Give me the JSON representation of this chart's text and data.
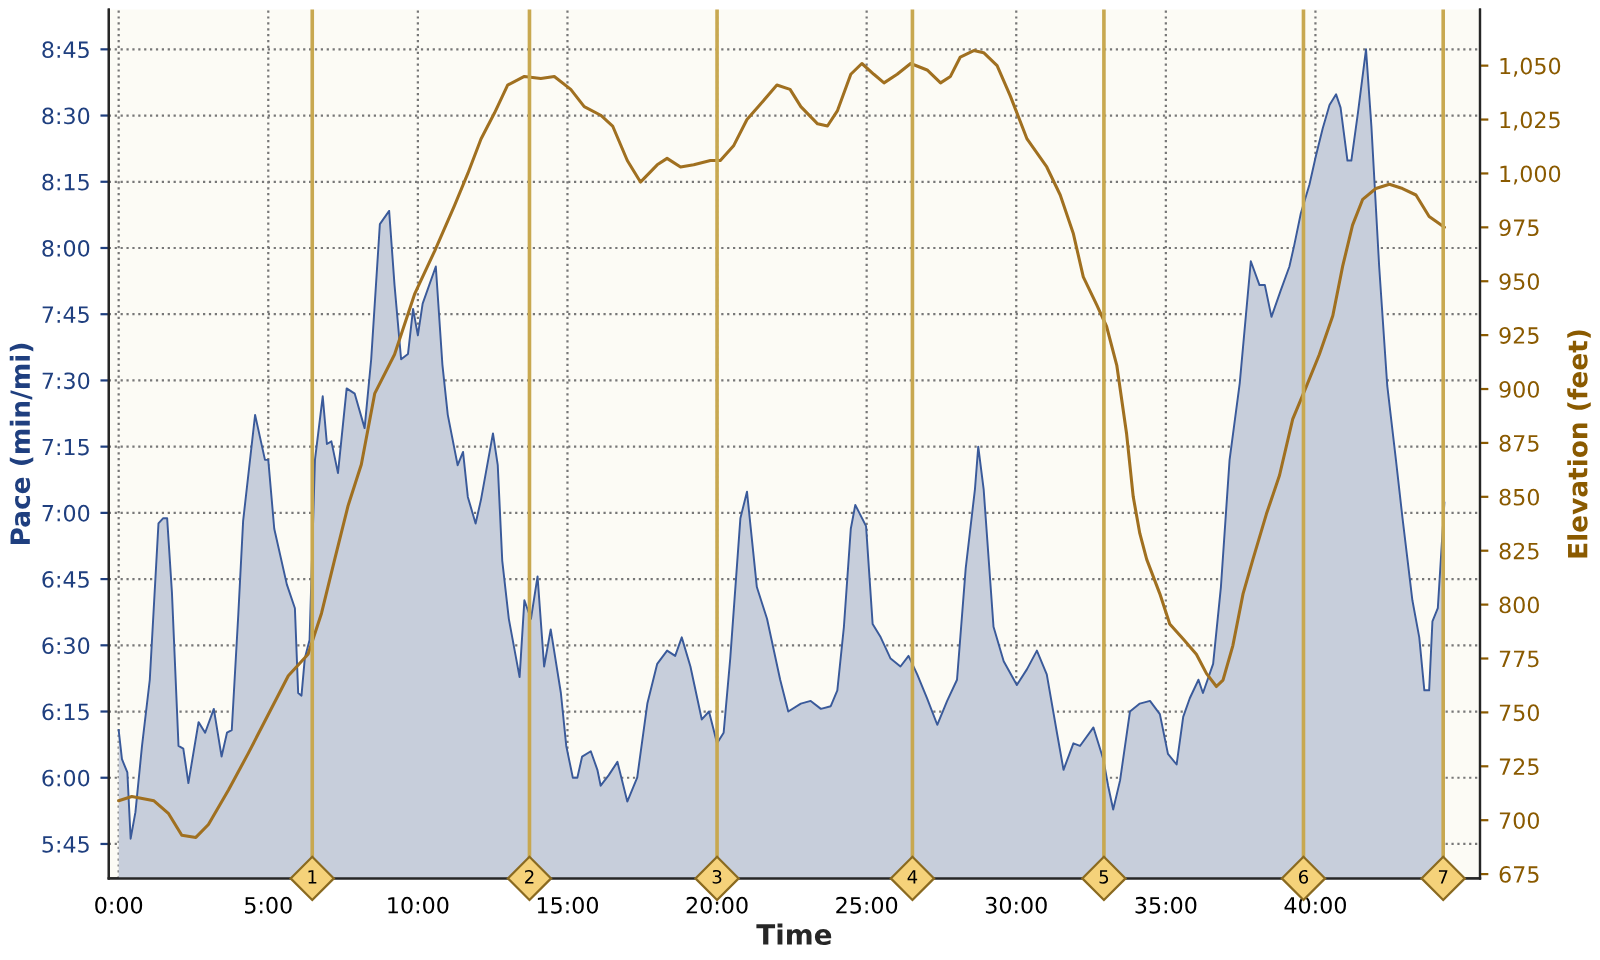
{
  "chart_data": {
    "type": "area",
    "xlabel": "Time",
    "ylabel": "Pace (min/mi)",
    "y2label": "Elevation (feet)",
    "xlim": [
      -0.33,
      45.5
    ],
    "xticks": [
      {
        "value": 0,
        "label": "0:00"
      },
      {
        "value": 5,
        "label": "5:00"
      },
      {
        "value": 10,
        "label": "10:00"
      },
      {
        "value": 15,
        "label": "15:00"
      },
      {
        "value": 20,
        "label": "20:00"
      },
      {
        "value": 25,
        "label": "25:00"
      },
      {
        "value": 30,
        "label": "30:00"
      },
      {
        "value": 35,
        "label": "35:00"
      },
      {
        "value": 40,
        "label": "40:00"
      }
    ],
    "ylim": [
      5.62,
      8.9
    ],
    "yticks": [
      {
        "value": 5.75,
        "label": "5:45"
      },
      {
        "value": 6.0,
        "label": "6:00"
      },
      {
        "value": 6.25,
        "label": "6:15"
      },
      {
        "value": 6.5,
        "label": "6:30"
      },
      {
        "value": 6.75,
        "label": "6:45"
      },
      {
        "value": 7.0,
        "label": "7:00"
      },
      {
        "value": 7.25,
        "label": "7:15"
      },
      {
        "value": 7.5,
        "label": "7:30"
      },
      {
        "value": 7.75,
        "label": "7:45"
      },
      {
        "value": 8.0,
        "label": "8:00"
      },
      {
        "value": 8.25,
        "label": "8:15"
      },
      {
        "value": 8.5,
        "label": "8:30"
      },
      {
        "value": 8.75,
        "label": "8:45"
      }
    ],
    "y2lim": [
      673,
      1076
    ],
    "y2ticks": [
      675,
      700,
      725,
      750,
      775,
      800,
      825,
      850,
      875,
      900,
      925,
      950,
      975,
      {
        "value": 1000,
        "label": "1,000"
      },
      {
        "value": 1025,
        "label": "1,025"
      },
      {
        "value": 1050,
        "label": "1,050"
      }
    ],
    "grid": true,
    "legend": false,
    "ref_lines": [
      {
        "axis": "x",
        "value": 6.47,
        "color": "#c8a850"
      },
      {
        "axis": "x",
        "value": 13.73,
        "color": "#c8a850"
      },
      {
        "axis": "x",
        "value": 20.0,
        "color": "#c8a850"
      },
      {
        "axis": "x",
        "value": 26.53,
        "color": "#c8a850"
      },
      {
        "axis": "x",
        "value": 32.93,
        "color": "#c8a850"
      },
      {
        "axis": "x",
        "value": 39.6,
        "color": "#c8a850"
      },
      {
        "axis": "x",
        "value": 44.27,
        "color": "#c8a850"
      }
    ],
    "annotations": [
      {
        "text": "1",
        "x": 6.47,
        "y": 5.62
      },
      {
        "text": "2",
        "x": 13.73,
        "y": 5.62
      },
      {
        "text": "3",
        "x": 20.0,
        "y": 5.62
      },
      {
        "text": "4",
        "x": 26.53,
        "y": 5.62
      },
      {
        "text": "5",
        "x": 32.93,
        "y": 5.62
      },
      {
        "text": "6",
        "x": 39.6,
        "y": 5.62
      },
      {
        "text": "7",
        "x": 44.27,
        "y": 5.62
      }
    ],
    "series": [
      {
        "color": "#3a5a9a",
        "x": [
          0,
          0.11,
          0.29,
          0.4,
          0.56,
          0.78,
          1.04,
          1.33,
          1.49,
          1.62,
          1.78,
          2.0,
          2.16,
          2.33,
          2.67,
          2.89,
          3.18,
          3.44,
          3.62,
          3.78,
          4.0,
          4.16,
          4.56,
          4.89,
          5.0,
          5.2,
          5.62,
          5.89,
          6.0,
          6.11,
          6.22,
          6.38,
          6.56,
          6.82,
          6.96,
          7.11,
          7.33,
          7.62,
          7.89,
          8.22,
          8.44,
          8.73,
          9.04,
          9.22,
          9.44,
          9.67,
          9.84,
          10.0,
          10.16,
          10.6,
          10.82,
          11.0,
          11.33,
          11.51,
          11.67,
          11.93,
          12.11,
          12.51,
          12.67,
          12.82,
          13.04,
          13.4,
          13.56,
          13.78,
          14.0,
          14.22,
          14.44,
          14.78,
          14.96,
          15.18,
          15.33,
          15.49,
          15.78,
          16.0,
          16.11,
          16.38,
          16.67,
          17.0,
          17.33,
          17.67,
          18.0,
          18.33,
          18.6,
          18.82,
          19.11,
          19.49,
          19.73,
          20.0,
          20.22,
          20.44,
          20.78,
          21.0,
          21.33,
          21.67,
          22.11,
          22.38,
          22.8,
          23.13,
          23.47,
          23.8,
          24.02,
          24.24,
          24.47,
          24.62,
          24.98,
          25.2,
          25.47,
          25.8,
          26.13,
          26.4,
          26.69,
          27.02,
          27.36,
          27.69,
          28.02,
          28.31,
          28.62,
          28.73,
          28.91,
          29.24,
          29.58,
          30.02,
          30.36,
          30.69,
          31.02,
          31.36,
          31.58,
          31.91,
          32.13,
          32.58,
          32.91,
          33.07,
          33.24,
          33.47,
          33.8,
          34.13,
          34.47,
          34.8,
          35.07,
          35.36,
          35.58,
          35.8,
          36.09,
          36.24,
          36.58,
          36.84,
          37.13,
          37.47,
          37.84,
          38.13,
          38.31,
          38.53,
          38.84,
          39.13,
          39.29,
          39.51,
          39.8,
          40.02,
          40.24,
          40.47,
          40.69,
          40.84,
          41.07,
          41.2,
          41.42,
          41.69,
          41.87,
          42.13,
          42.4,
          42.69,
          42.91,
          43.07,
          43.24,
          43.47,
          43.64,
          43.8,
          43.91,
          44.09,
          44.31
        ],
        "values": [
          6.18,
          6.07,
          6.02,
          5.77,
          5.87,
          6.12,
          6.37,
          6.96,
          6.98,
          6.98,
          6.7,
          6.12,
          6.11,
          5.98,
          6.21,
          6.17,
          6.26,
          6.08,
          6.17,
          6.18,
          6.62,
          6.97,
          7.37,
          7.2,
          7.2,
          6.94,
          6.73,
          6.64,
          6.32,
          6.31,
          6.45,
          6.52,
          7.2,
          7.44,
          7.26,
          7.27,
          7.15,
          7.47,
          7.45,
          7.32,
          7.58,
          8.09,
          8.14,
          7.86,
          7.58,
          7.6,
          7.77,
          7.67,
          7.79,
          7.93,
          7.56,
          7.37,
          7.18,
          7.23,
          7.06,
          6.96,
          7.05,
          7.3,
          7.18,
          6.82,
          6.6,
          6.38,
          6.67,
          6.6,
          6.76,
          6.42,
          6.56,
          6.32,
          6.12,
          6.0,
          6.0,
          6.08,
          6.1,
          6.03,
          5.97,
          6.01,
          6.06,
          5.91,
          6.0,
          6.28,
          6.43,
          6.48,
          6.46,
          6.53,
          6.42,
          6.22,
          6.25,
          6.13,
          6.17,
          6.45,
          6.98,
          7.08,
          6.72,
          6.6,
          6.37,
          6.25,
          6.28,
          6.29,
          6.26,
          6.27,
          6.33,
          6.57,
          6.94,
          7.03,
          6.95,
          6.58,
          6.53,
          6.45,
          6.42,
          6.46,
          6.39,
          6.3,
          6.2,
          6.29,
          6.37,
          6.79,
          7.09,
          7.25,
          7.09,
          6.57,
          6.44,
          6.35,
          6.41,
          6.48,
          6.39,
          6.17,
          6.03,
          6.13,
          6.12,
          6.19,
          6.07,
          5.97,
          5.88,
          5.99,
          6.25,
          6.28,
          6.29,
          6.24,
          6.09,
          6.05,
          6.23,
          6.3,
          6.37,
          6.32,
          6.43,
          6.72,
          7.2,
          7.49,
          7.95,
          7.86,
          7.86,
          7.74,
          7.84,
          7.93,
          8.01,
          8.13,
          8.24,
          8.35,
          8.45,
          8.54,
          8.58,
          8.53,
          8.33,
          8.33,
          8.51,
          8.75,
          8.46,
          7.93,
          7.48,
          7.2,
          6.98,
          6.83,
          6.67,
          6.53,
          6.33,
          6.33,
          6.59,
          6.64,
          7.04
        ]
      },
      {
        "type": "line",
        "axis": "y2",
        "color": "#a07020",
        "x": [
          0,
          0.44,
          1.18,
          1.67,
          2.11,
          2.58,
          3.0,
          3.67,
          4.33,
          5.0,
          5.67,
          6.33,
          6.78,
          7.22,
          7.67,
          8.11,
          8.56,
          9.22,
          9.89,
          10.56,
          11.22,
          11.67,
          12.11,
          12.56,
          13.0,
          13.56,
          14.11,
          14.56,
          15.11,
          15.56,
          16.11,
          16.51,
          17.0,
          17.44,
          18.0,
          18.33,
          18.78,
          19.22,
          19.78,
          20.11,
          20.56,
          21.0,
          21.44,
          22.0,
          22.44,
          22.8,
          23.36,
          23.69,
          24.02,
          24.47,
          24.84,
          25.24,
          25.58,
          26.02,
          26.47,
          27.02,
          27.47,
          27.8,
          28.13,
          28.58,
          28.91,
          29.36,
          29.8,
          30.36,
          31.02,
          31.47,
          31.91,
          32.24,
          32.69,
          33.02,
          33.36,
          33.69,
          33.91,
          34.13,
          34.36,
          34.8,
          35.13,
          35.58,
          36.02,
          36.36,
          36.69,
          36.91,
          37.24,
          37.58,
          37.91,
          38.36,
          38.8,
          39.24,
          39.69,
          40.13,
          40.58,
          40.91,
          41.24,
          41.58,
          42.02,
          42.47,
          42.91,
          43.36,
          43.8,
          44.31
        ],
        "values": [
          709,
          711,
          709,
          703,
          693,
          692,
          698,
          714,
          731,
          749,
          767,
          777,
          796,
          821,
          846,
          865,
          898,
          916,
          944,
          964,
          985,
          1000,
          1016,
          1028,
          1041,
          1045,
          1044,
          1045,
          1039,
          1031,
          1027,
          1022,
          1006,
          996,
          1004,
          1007,
          1003,
          1004,
          1006,
          1006,
          1013,
          1025,
          1032,
          1041,
          1039,
          1031,
          1023,
          1022,
          1029,
          1046,
          1051,
          1046,
          1042,
          1046,
          1051,
          1048,
          1042,
          1045,
          1054,
          1057,
          1056,
          1050,
          1036,
          1016,
          1003,
          990,
          972,
          952,
          939,
          929,
          911,
          879,
          850,
          833,
          821,
          805,
          791,
          784,
          777,
          768,
          762,
          765,
          781,
          805,
          821,
          842,
          860,
          886,
          901,
          916,
          934,
          957,
          976,
          988,
          993,
          995,
          993,
          990,
          980,
          975
        ]
      }
    ]
  }
}
